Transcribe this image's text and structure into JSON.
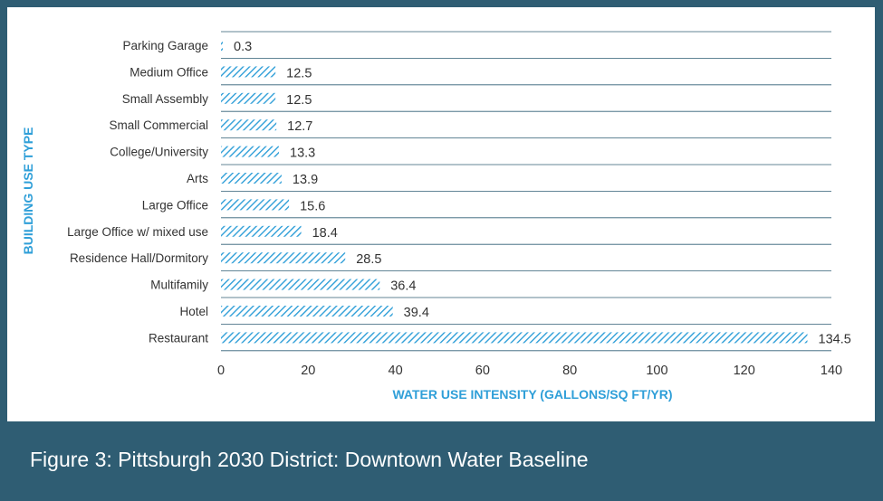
{
  "chart_data": {
    "type": "bar",
    "orientation": "horizontal",
    "categories": [
      "Parking Garage",
      "Medium Office",
      "Small Assembly",
      "Small Commercial",
      "College/University",
      "Arts",
      "Large Office",
      "Large Office w/ mixed use",
      "Residence Hall/Dormitory",
      "Multifamily",
      "Hotel",
      "Restaurant"
    ],
    "values": [
      0.3,
      12.5,
      12.5,
      12.7,
      13.3,
      13.9,
      15.6,
      18.4,
      28.5,
      36.4,
      39.4,
      134.5
    ],
    "value_labels": [
      "0.3",
      "12.5",
      "12.5",
      "12.7",
      "13.3",
      "13.9",
      "15.6",
      "18.4",
      "28.5",
      "36.4",
      "39.4",
      "134.5"
    ],
    "xlabel": "WATER USE INTENSITY (GALLONS/SQ FT/YR)",
    "ylabel": "BUILDING USE TYPE",
    "xlim": [
      0,
      140
    ],
    "xticks": [
      0,
      20,
      40,
      60,
      80,
      100,
      120,
      140
    ],
    "grid": "horizontal",
    "bar_pattern": "diagonal-hatch",
    "colors": {
      "bar": "#2f9fd8",
      "axis_title": "#2f9fd8",
      "grid": "#2f5d73",
      "text": "#333333"
    }
  },
  "caption": "Figure 3: Pittsburgh 2030 District: Downtown Water Baseline",
  "frame_color": "#2f5d73"
}
